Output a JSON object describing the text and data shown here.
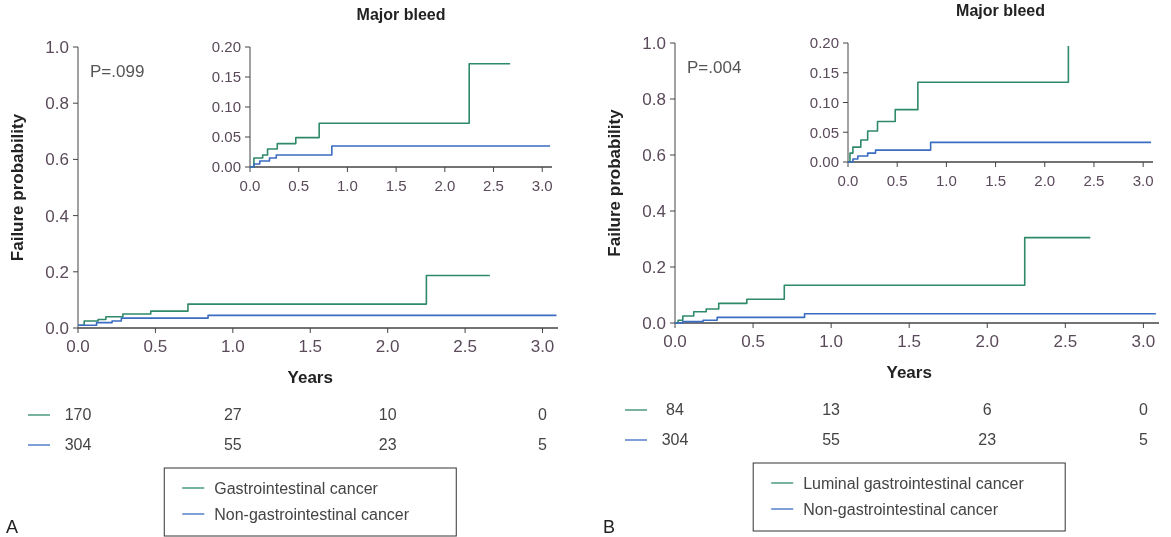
{
  "chart_data": [
    {
      "type": "step",
      "xlabel": "Years",
      "ylabel": "Failure probability",
      "xlim": [
        0,
        3.1
      ],
      "ylim": [
        0,
        1
      ],
      "xticks": [
        {
          "value": 0,
          "label": "0.0"
        },
        {
          "value": 0.5,
          "label": "0.5"
        },
        {
          "value": 1,
          "label": "1.0"
        },
        {
          "value": 1.5,
          "label": "1.5"
        },
        {
          "value": 2,
          "label": "2.0"
        },
        {
          "value": 2.5,
          "label": "2.5"
        },
        {
          "value": 3,
          "label": "3.0"
        }
      ],
      "yticks": [
        {
          "value": 0,
          "label": "0.0"
        },
        {
          "value": 0.2,
          "label": "0.2"
        },
        {
          "value": 0.4,
          "label": "0.4"
        },
        {
          "value": 0.6,
          "label": "0.6"
        },
        {
          "value": 0.8,
          "label": "0.8"
        },
        {
          "value": 1,
          "label": "1.0"
        }
      ],
      "grid": false,
      "legend": "bottom",
      "marker": "none",
      "line_style": "solid",
      "series": [
        {
          "name": "Gastrointestinal cancer",
          "color": "#2f8a68",
          "x": [
            0,
            0.04,
            0.13,
            0.18,
            0.29,
            0.47,
            0.71,
            2.25,
            2.66
          ],
          "values": [
            0.01,
            0.025,
            0.03,
            0.04,
            0.05,
            0.06,
            0.085,
            0.187,
            0.187
          ]
        },
        {
          "name": "Non-gastrointestinal cancer",
          "color": "#3a6cc2",
          "x": [
            0,
            0.12,
            0.22,
            0.28,
            0.84,
            3.09
          ],
          "values": [
            0.01,
            0.019,
            0.025,
            0.035,
            0.045,
            0.045
          ]
        }
      ],
      "annotations": [
        "P=.099",
        "170",
        "27",
        "10",
        "0",
        "304",
        "55",
        "23",
        "5",
        "A"
      ]
    },
    {
      "type": "step",
      "title": "Major bleed",
      "xlim": [
        0,
        3.1
      ],
      "ylim": [
        0,
        0.2
      ],
      "xticks": [
        {
          "value": 0,
          "label": "0.0"
        },
        {
          "value": 0.5,
          "label": "0.5"
        },
        {
          "value": 1,
          "label": "1.0"
        },
        {
          "value": 1.5,
          "label": "1.5"
        },
        {
          "value": 2,
          "label": "2.0"
        },
        {
          "value": 2.5,
          "label": "2.5"
        },
        {
          "value": 3,
          "label": "3.0"
        }
      ],
      "yticks": [
        {
          "value": 0,
          "label": "0.00"
        },
        {
          "value": 0.05,
          "label": "0.05"
        },
        {
          "value": 0.1,
          "label": "0.10"
        },
        {
          "value": 0.15,
          "label": "0.15"
        },
        {
          "value": 0.2,
          "label": "0.20"
        }
      ],
      "grid": false,
      "legend": false,
      "marker": "none",
      "line_style": "solid",
      "series": [
        {
          "color": "#2f8a68",
          "x": [
            0,
            0.04,
            0.13,
            0.18,
            0.28,
            0.47,
            0.71,
            2.25,
            2.67
          ],
          "values": [
            0,
            0.015,
            0.02,
            0.03,
            0.039,
            0.049,
            0.073,
            0.172,
            0.172
          ]
        },
        {
          "color": "#3a6cc2",
          "x": [
            0,
            0.04,
            0.1,
            0.2,
            0.27,
            0.84,
            3.08
          ],
          "values": [
            0,
            0.005,
            0.01,
            0.015,
            0.02,
            0.035,
            0.035
          ]
        }
      ]
    },
    {
      "type": "step",
      "xlabel": "Years",
      "ylabel": "Failure probability",
      "xlim": [
        0,
        3.1
      ],
      "ylim": [
        0,
        1
      ],
      "xticks": [
        {
          "value": 0,
          "label": "0.0"
        },
        {
          "value": 0.5,
          "label": "0.5"
        },
        {
          "value": 1,
          "label": "1.0"
        },
        {
          "value": 1.5,
          "label": "1.5"
        },
        {
          "value": 2,
          "label": "2.0"
        },
        {
          "value": 2.5,
          "label": "2.5"
        },
        {
          "value": 3,
          "label": "3.0"
        }
      ],
      "yticks": [
        {
          "value": 0,
          "label": "0.0"
        },
        {
          "value": 0.2,
          "label": "0.2"
        },
        {
          "value": 0.4,
          "label": "0.4"
        },
        {
          "value": 0.6,
          "label": "0.6"
        },
        {
          "value": 0.8,
          "label": "0.8"
        },
        {
          "value": 1,
          "label": "1.0"
        }
      ],
      "grid": false,
      "legend": "bottom",
      "marker": "none",
      "line_style": "solid",
      "series": [
        {
          "name": "Luminal gastrointestinal cancer",
          "color": "#2f8a68",
          "x": [
            0,
            0.02,
            0.05,
            0.12,
            0.2,
            0.28,
            0.46,
            0.7,
            2.24,
            2.66
          ],
          "values": [
            0,
            0.01,
            0.025,
            0.04,
            0.05,
            0.07,
            0.085,
            0.135,
            0.305,
            0.305
          ]
        },
        {
          "name": "Non-gastrointestinal cancer",
          "color": "#3a6cc2",
          "x": [
            0,
            0.05,
            0.18,
            0.27,
            0.83,
            3.08
          ],
          "values": [
            0,
            0.005,
            0.01,
            0.02,
            0.033,
            0.033
          ]
        }
      ],
      "annotations": [
        "P=.004",
        "84",
        "13",
        "6",
        "0",
        "304",
        "55",
        "23",
        "5",
        "B"
      ]
    },
    {
      "type": "step",
      "title": "Major bleed",
      "xlim": [
        0,
        3.1
      ],
      "ylim": [
        0,
        0.2
      ],
      "xticks": [
        {
          "value": 0,
          "label": "0.0"
        },
        {
          "value": 0.5,
          "label": "0.5"
        },
        {
          "value": 1,
          "label": "1.0"
        },
        {
          "value": 1.5,
          "label": "1.5"
        },
        {
          "value": 2,
          "label": "2.0"
        },
        {
          "value": 2.5,
          "label": "2.5"
        },
        {
          "value": 3,
          "label": "3.0"
        }
      ],
      "yticks": [
        {
          "value": 0,
          "label": "0.00"
        },
        {
          "value": 0.05,
          "label": "0.05"
        },
        {
          "value": 0.1,
          "label": "0.10"
        },
        {
          "value": 0.15,
          "label": "0.15"
        },
        {
          "value": 0.2,
          "label": "0.20"
        }
      ],
      "grid": false,
      "legend": false,
      "marker": "none",
      "line_style": "solid",
      "series": [
        {
          "color": "#2f8a68",
          "x": [
            0,
            0.02,
            0.05,
            0.13,
            0.2,
            0.3,
            0.48,
            0.71,
            2.24
          ],
          "values": [
            0,
            0.015,
            0.025,
            0.037,
            0.052,
            0.068,
            0.088,
            0.134,
            0.195
          ]
        },
        {
          "color": "#3a6cc2",
          "x": [
            0,
            0.05,
            0.1,
            0.2,
            0.28,
            0.84,
            3.08
          ],
          "values": [
            0,
            0.005,
            0.01,
            0.015,
            0.02,
            0.033,
            0.033
          ]
        }
      ]
    }
  ]
}
